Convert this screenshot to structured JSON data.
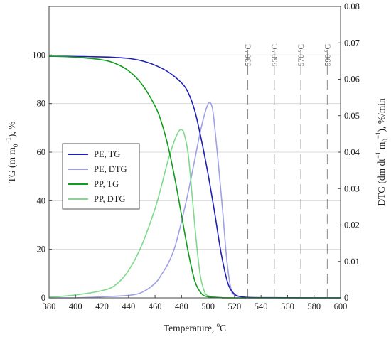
{
  "chart_data": {
    "type": "line",
    "xlabel": "Temperature, ",
    "xlabel_unit_sup": "o",
    "xlabel_unit": "C",
    "ylabel_left": "TG (m m0−1), %",
    "ylabel_right": "DTG (dm dt−1 m0−1), %/min",
    "xlim": [
      380,
      600
    ],
    "ylim_left": [
      0,
      120
    ],
    "ylim_right": [
      0,
      0.08
    ],
    "xticks": [
      "380",
      "400",
      "420",
      "440",
      "460",
      "480",
      "500",
      "520",
      "540",
      "560",
      "580",
      "600"
    ],
    "yticks_left": [
      "0",
      "20",
      "40",
      "60",
      "80",
      "100"
    ],
    "yticks_right": [
      "0",
      "0.01",
      "0.02",
      "0.03",
      "0.04",
      "0.05",
      "0.06",
      "0.07",
      "0.08"
    ],
    "grid": true,
    "legend_position": "center-left",
    "annotations": [
      {
        "x": 530,
        "label": "530 ºC"
      },
      {
        "x": 550,
        "label": "550 ºC"
      },
      {
        "x": 570,
        "label": "570 ºC"
      },
      {
        "x": 590,
        "label": "590 ºC"
      }
    ],
    "series": [
      {
        "name": "PE, TG",
        "axis": "left",
        "color": "#1f1fb4",
        "points": [
          [
            380,
            99.5
          ],
          [
            400,
            99.4
          ],
          [
            420,
            99.2
          ],
          [
            430,
            99.0
          ],
          [
            440,
            98.6
          ],
          [
            450,
            97.6
          ],
          [
            460,
            95.8
          ],
          [
            470,
            93.0
          ],
          [
            480,
            88.5
          ],
          [
            485,
            84.5
          ],
          [
            490,
            77
          ],
          [
            495,
            65
          ],
          [
            500,
            51
          ],
          [
            505,
            35
          ],
          [
            510,
            18
          ],
          [
            515,
            6
          ],
          [
            520,
            1.5
          ],
          [
            525,
            0.5
          ],
          [
            530,
            0.2
          ],
          [
            540,
            0.1
          ],
          [
            560,
            0.05
          ],
          [
            600,
            0
          ]
        ]
      },
      {
        "name": "PE, DTG",
        "axis": "right",
        "color": "#a0a0e6",
        "points": [
          [
            380,
            0
          ],
          [
            400,
            0
          ],
          [
            420,
            0.0003
          ],
          [
            440,
            0.0007
          ],
          [
            450,
            0.0015
          ],
          [
            460,
            0.004
          ],
          [
            465,
            0.0065
          ],
          [
            470,
            0.0095
          ],
          [
            475,
            0.014
          ],
          [
            480,
            0.021
          ],
          [
            485,
            0.029
          ],
          [
            490,
            0.038
          ],
          [
            495,
            0.047
          ],
          [
            500,
            0.0532
          ],
          [
            503,
            0.0525
          ],
          [
            505,
            0.047
          ],
          [
            508,
            0.036
          ],
          [
            511,
            0.024
          ],
          [
            514,
            0.011
          ],
          [
            517,
            0.003
          ],
          [
            520,
            0.0008
          ],
          [
            530,
            0.0001
          ],
          [
            540,
            0
          ],
          [
            600,
            0
          ]
        ]
      },
      {
        "name": "PP, TG",
        "axis": "left",
        "color": "#109c1e",
        "points": [
          [
            380,
            99.5
          ],
          [
            400,
            99.1
          ],
          [
            420,
            98.0
          ],
          [
            430,
            96.5
          ],
          [
            440,
            93.5
          ],
          [
            450,
            88
          ],
          [
            460,
            79
          ],
          [
            465,
            72
          ],
          [
            470,
            62
          ],
          [
            475,
            49
          ],
          [
            480,
            34
          ],
          [
            485,
            19
          ],
          [
            490,
            7
          ],
          [
            495,
            1.8
          ],
          [
            500,
            0.5
          ],
          [
            510,
            0.1
          ],
          [
            520,
            0
          ],
          [
            600,
            0
          ]
        ]
      },
      {
        "name": "PP, DTG",
        "axis": "right",
        "color": "#7fd98c",
        "points": [
          [
            380,
            0.0002
          ],
          [
            400,
            0.0008
          ],
          [
            420,
            0.002
          ],
          [
            430,
            0.0035
          ],
          [
            440,
            0.0075
          ],
          [
            450,
            0.0145
          ],
          [
            460,
            0.0245
          ],
          [
            465,
            0.031
          ],
          [
            470,
            0.038
          ],
          [
            475,
            0.0435
          ],
          [
            478,
            0.0458
          ],
          [
            480,
            0.0462
          ],
          [
            482,
            0.045
          ],
          [
            485,
            0.0395
          ],
          [
            488,
            0.028
          ],
          [
            491,
            0.016
          ],
          [
            494,
            0.0065
          ],
          [
            497,
            0.002
          ],
          [
            500,
            0.0006
          ],
          [
            510,
            0.0001
          ],
          [
            520,
            0
          ],
          [
            600,
            0
          ]
        ]
      }
    ]
  }
}
